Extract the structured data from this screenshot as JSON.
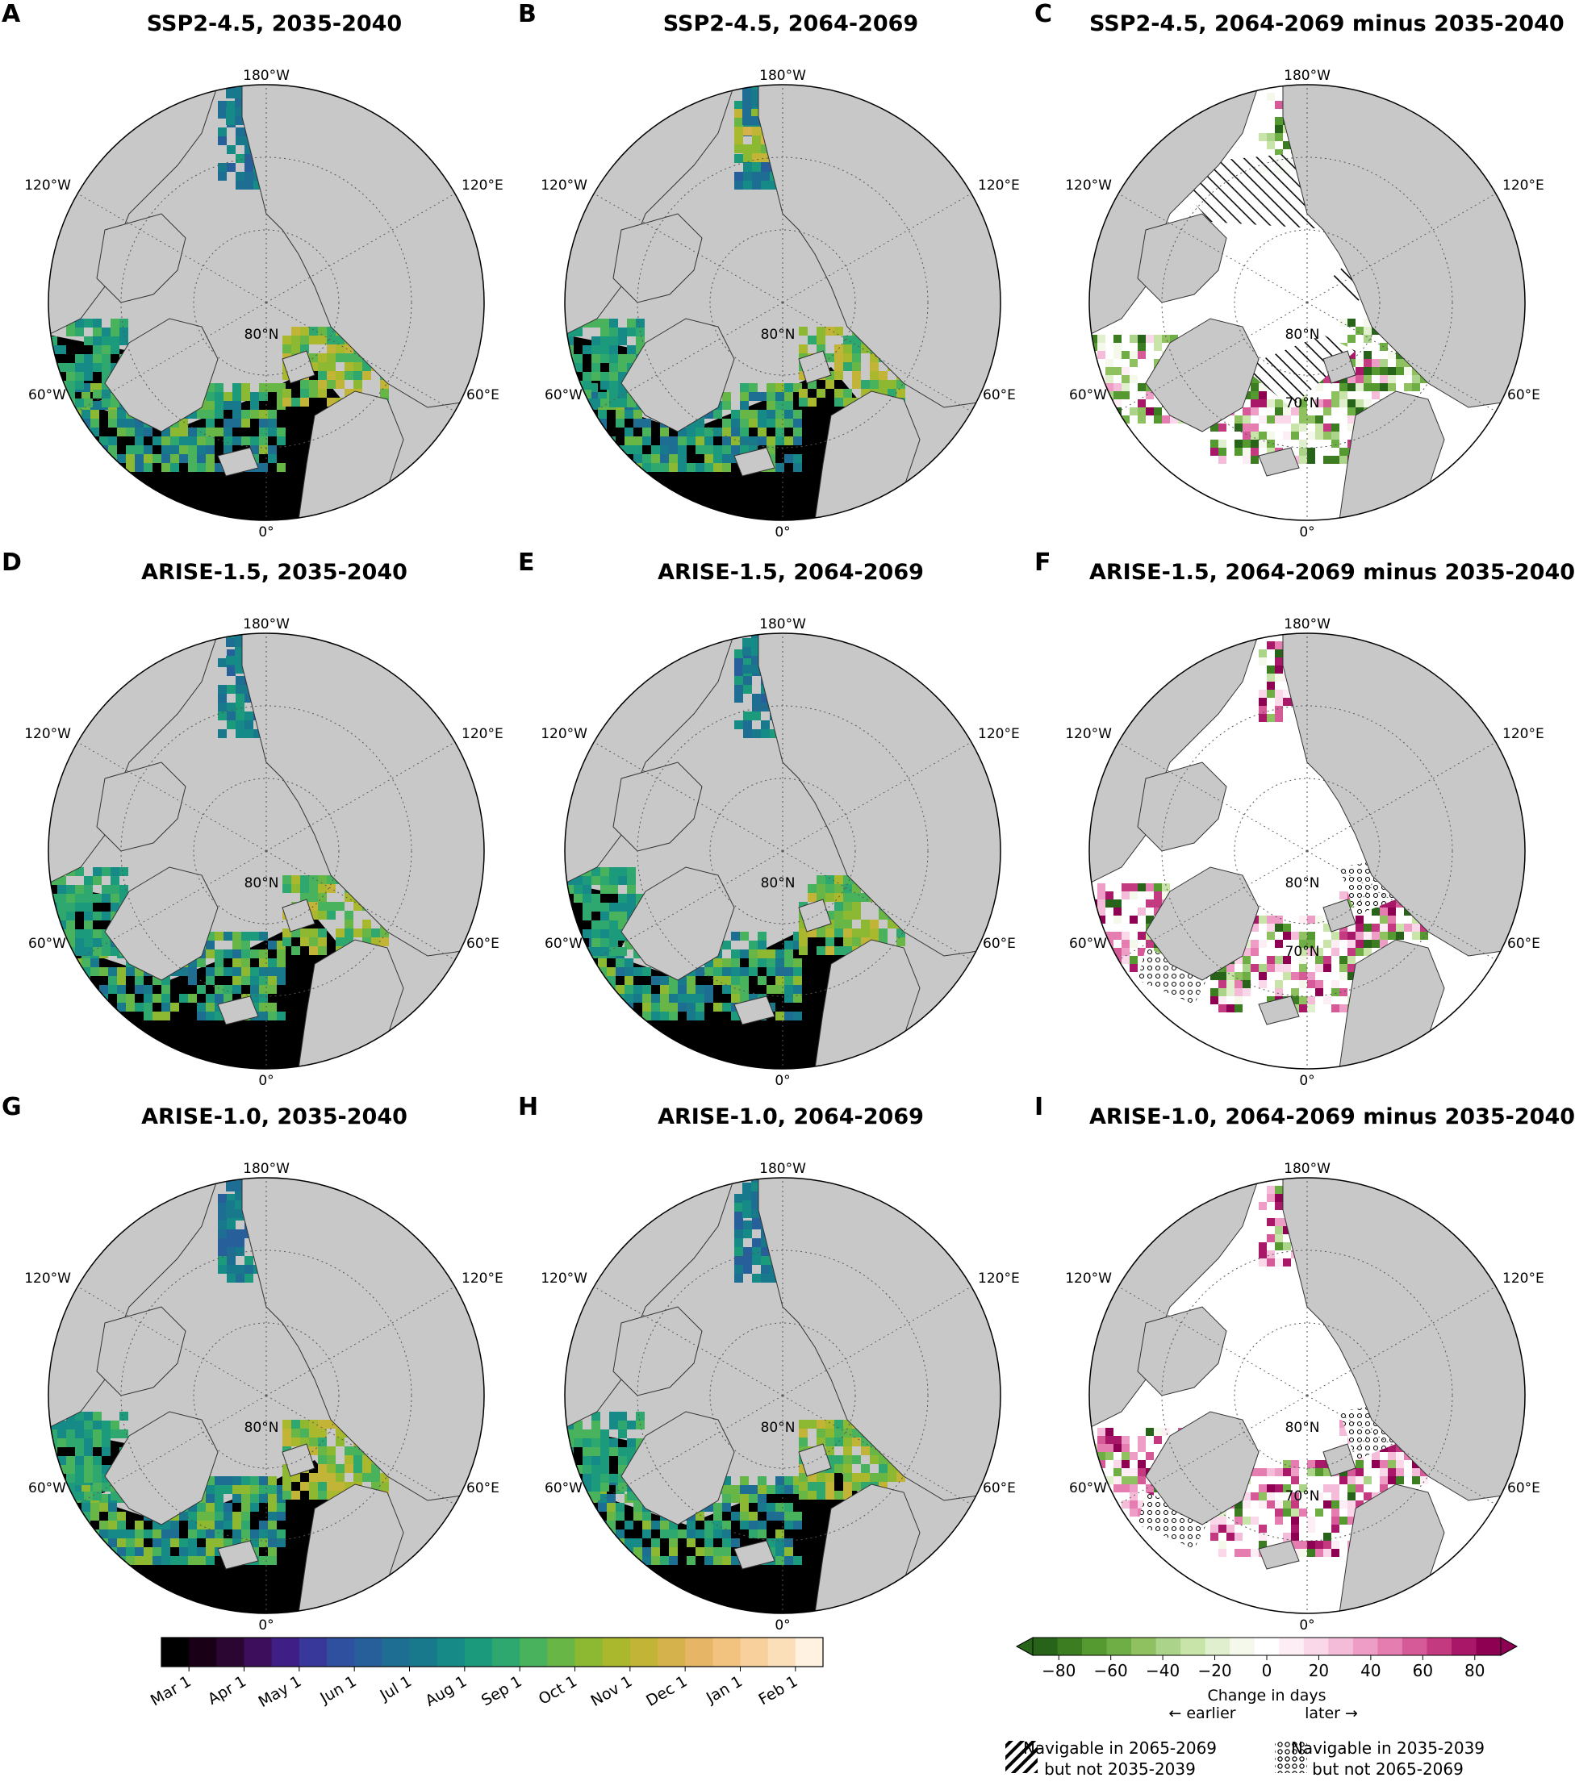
{
  "panels": [
    {
      "letter": "A",
      "title": "SSP2-4.5, 2035-2040",
      "kind": "date"
    },
    {
      "letter": "B",
      "title": "SSP2-4.5, 2064-2069",
      "kind": "date"
    },
    {
      "letter": "C",
      "title": "SSP2-4.5, 2064-2069 minus 2035-2040",
      "kind": "diff",
      "pattern": "hatch"
    },
    {
      "letter": "D",
      "title": "ARISE-1.5, 2035-2040",
      "kind": "date"
    },
    {
      "letter": "E",
      "title": "ARISE-1.5, 2064-2069",
      "kind": "date"
    },
    {
      "letter": "F",
      "title": "ARISE-1.5, 2064-2069 minus 2035-2040",
      "kind": "diff",
      "pattern": "dots"
    },
    {
      "letter": "G",
      "title": "ARISE-1.0, 2035-2040",
      "kind": "date"
    },
    {
      "letter": "H",
      "title": "ARISE-1.0, 2064-2069",
      "kind": "date"
    },
    {
      "letter": "I",
      "title": "ARISE-1.0, 2064-2069 minus 2035-2040",
      "kind": "diff",
      "pattern": "dots"
    }
  ],
  "map_labels": {
    "top": "180°W",
    "bottom": "0°",
    "left_upper": "120°W",
    "right_upper": "120°E",
    "left_lower": "60°W",
    "right_lower": "60°E",
    "lat80": "80°N",
    "lat70": "70°N"
  },
  "date_colorbar": {
    "ticks": [
      "Mar 1",
      "Apr 1",
      "May 1",
      "Jun 1",
      "Jul 1",
      "Aug 1",
      "Sep 1",
      "Oct 1",
      "Nov 1",
      "Dec 1",
      "Jan 1",
      "Feb 1"
    ],
    "colors": [
      "#000000",
      "#1a0016",
      "#2c0632",
      "#3d0e5c",
      "#3f1f86",
      "#38389a",
      "#2f4f9f",
      "#275f9b",
      "#1e6e93",
      "#18798d",
      "#158a86",
      "#1c9a7c",
      "#2ea86e",
      "#48b25d",
      "#68b646",
      "#8cb832",
      "#a9b82c",
      "#c2b436",
      "#d6b24c",
      "#e6b565",
      "#f2c27f",
      "#f7d09b",
      "#fbdfb9",
      "#fff2e0"
    ]
  },
  "diff_colorbar": {
    "ticks": [
      "−80",
      "−60",
      "−40",
      "−20",
      "0",
      "20",
      "40",
      "60",
      "80"
    ],
    "min": -90,
    "max": 90,
    "label": "Change in days",
    "earlier": "← earlier",
    "later": "later →",
    "colors": [
      "#276419",
      "#3c7d22",
      "#559a31",
      "#6fae44",
      "#8fc160",
      "#acd38a",
      "#c8e4a8",
      "#e0f0cf",
      "#f4f9ec",
      "#ffffff",
      "#fdeef5",
      "#fad8e9",
      "#f5bcd9",
      "#ee9ec6",
      "#e57db1",
      "#d65a98",
      "#c43a80",
      "#a81768",
      "#8e0152"
    ]
  },
  "legend": {
    "hatch_line1": "Navigable in 2065-2069",
    "hatch_line2": "but not 2035-2039",
    "dots_line1": "Navigable in 2035-2039",
    "dots_line2": "but not 2065-2069"
  },
  "colors": {
    "land": "#c8c8c8",
    "ocean_ice": "#000000",
    "diff_bg": "#ffffff",
    "coast": "#333333"
  }
}
